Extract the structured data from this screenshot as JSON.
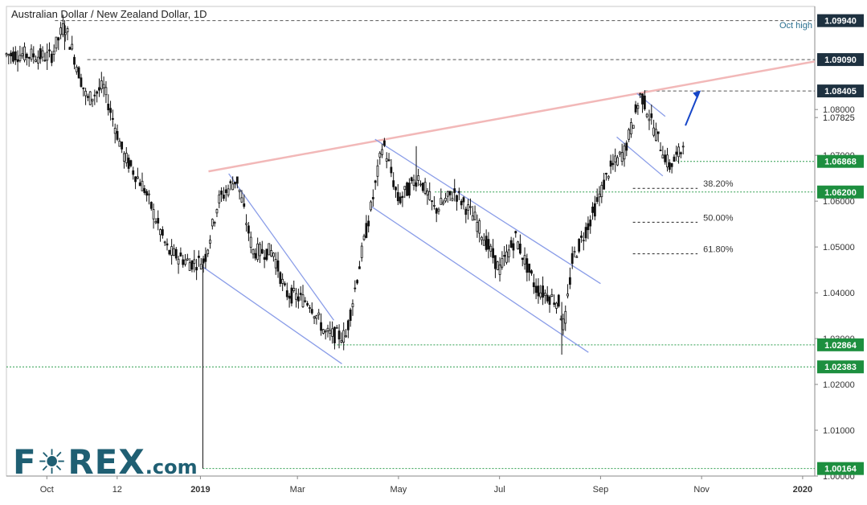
{
  "title": "Australian Dollar / New Zealand Dollar, 1D",
  "logo": {
    "main": "F☀REX",
    "suffix": ".com"
  },
  "colors": {
    "candle": "#111111",
    "channel": "#8a9de8",
    "trendline": "#f2b8b8",
    "support": "#2e9e4f",
    "resistance": "#555555",
    "arrow": "#1646c8",
    "label_green": "#1d8f3f",
    "label_dark": "#1e3140"
  },
  "chart_data": {
    "type": "candlestick",
    "ylim": [
      1.0,
      1.1025
    ],
    "x_ticks": [
      "Oct",
      "12",
      "2019",
      "Mar",
      "May",
      "Jul",
      "Sep",
      "Nov",
      "2020"
    ],
    "y_ticks": [
      "1.00000",
      "1.01000",
      "1.02000",
      "1.03000",
      "1.04000",
      "1.05000",
      "1.06000",
      "1.07000",
      "1.08000"
    ],
    "price_levels": [
      {
        "label": "1.09940",
        "value": 1.0994,
        "kind": "resistance",
        "note": "Oct high"
      },
      {
        "label": "1.09090",
        "value": 1.0909,
        "kind": "resistance"
      },
      {
        "label": "1.08405",
        "value": 1.08405,
        "kind": "resistance"
      },
      {
        "label": "1.07825",
        "value": 1.07825,
        "kind": "current"
      },
      {
        "label": "1.06868",
        "value": 1.06868,
        "kind": "support"
      },
      {
        "label": "1.06200",
        "value": 1.062,
        "kind": "support"
      },
      {
        "label": "1.02864",
        "value": 1.02864,
        "kind": "support"
      },
      {
        "label": "1.02383",
        "value": 1.02383,
        "kind": "support"
      },
      {
        "label": "1.00164",
        "value": 1.00164,
        "kind": "support"
      }
    ],
    "fibonacci": [
      {
        "label": "38.20%",
        "value": 1.0628
      },
      {
        "label": "50.00%",
        "value": 1.0554
      },
      {
        "label": "61.80%",
        "value": 1.0485
      }
    ],
    "anchors": [
      {
        "x": 0.02,
        "y": 1.092
      },
      {
        "x": 0.055,
        "y": 1.0915
      },
      {
        "x": 0.072,
        "y": 1.0985
      },
      {
        "x": 0.1,
        "y": 1.082
      },
      {
        "x": 0.12,
        "y": 1.085
      },
      {
        "x": 0.145,
        "y": 1.07
      },
      {
        "x": 0.17,
        "y": 1.063
      },
      {
        "x": 0.2,
        "y": 1.049
      },
      {
        "x": 0.228,
        "y": 1.0465
      },
      {
        "x": 0.245,
        "y": 1.047
      },
      {
        "x": 0.262,
        "y": 1.06
      },
      {
        "x": 0.285,
        "y": 1.065
      },
      {
        "x": 0.305,
        "y": 1.049
      },
      {
        "x": 0.33,
        "y": 1.049
      },
      {
        "x": 0.345,
        "y": 1.04
      },
      {
        "x": 0.375,
        "y": 1.038
      },
      {
        "x": 0.395,
        "y": 1.031
      },
      {
        "x": 0.42,
        "y": 1.0305
      },
      {
        "x": 0.44,
        "y": 1.049
      },
      {
        "x": 0.455,
        "y": 1.062
      },
      {
        "x": 0.466,
        "y": 1.073
      },
      {
        "x": 0.485,
        "y": 1.06
      },
      {
        "x": 0.51,
        "y": 1.0655
      },
      {
        "x": 0.53,
        "y": 1.058
      },
      {
        "x": 0.555,
        "y": 1.062
      },
      {
        "x": 0.58,
        "y": 1.056
      },
      {
        "x": 0.61,
        "y": 1.045
      },
      {
        "x": 0.63,
        "y": 1.052
      },
      {
        "x": 0.655,
        "y": 1.041
      },
      {
        "x": 0.683,
        "y": 1.038
      },
      {
        "x": 0.69,
        "y": 1.032
      },
      {
        "x": 0.7,
        "y": 1.047
      },
      {
        "x": 0.725,
        "y": 1.057
      },
      {
        "x": 0.745,
        "y": 1.0665
      },
      {
        "x": 0.765,
        "y": 1.071
      },
      {
        "x": 0.785,
        "y": 1.0835
      },
      {
        "x": 0.803,
        "y": 1.075
      },
      {
        "x": 0.82,
        "y": 1.0675
      },
      {
        "x": 0.835,
        "y": 1.071
      },
      {
        "x": 0.84,
        "y": 1.077
      }
    ]
  }
}
